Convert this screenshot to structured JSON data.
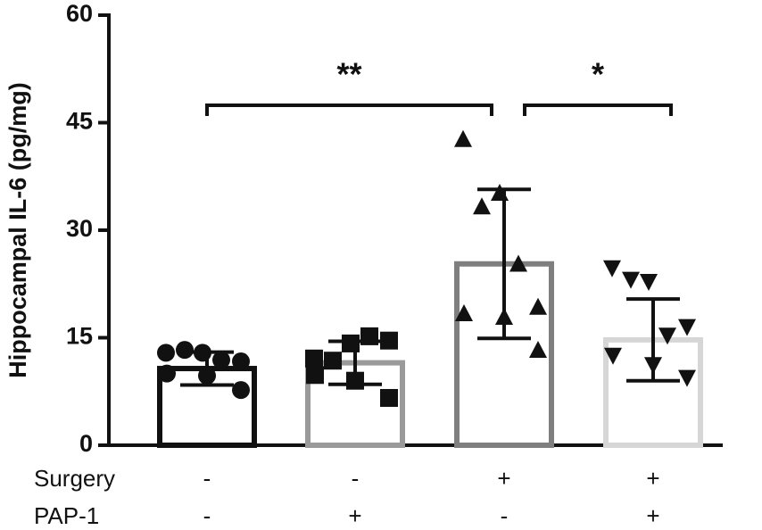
{
  "chart_data": {
    "type": "bar",
    "y_label": "Hippocampal IL-6 (pg/mg)",
    "ylim": [
      0,
      60
    ],
    "yticks": [
      0,
      15,
      30,
      45,
      60
    ],
    "values": [
      10.7,
      11.5,
      25.3,
      14.7
    ],
    "errors": [
      2.3,
      3.0,
      10.4,
      5.7
    ],
    "colors": [
      "#111111",
      "#9a9a9a",
      "#7f7f7f",
      "#d6d6d6"
    ],
    "markers": [
      "circle",
      "square",
      "triangle-up",
      "triangle-down"
    ],
    "points": [
      [
        12.9,
        13.3,
        12.9,
        11.9,
        11.7,
        10.0,
        9.7,
        7.7
      ],
      [
        12.1,
        11.8,
        14.2,
        15.2,
        14.6,
        9.8,
        9.0,
        6.6
      ],
      [
        42.6,
        33.2,
        35.1,
        25.2,
        19.2,
        18.3,
        17.8,
        13.2
      ],
      [
        24.8,
        23.2,
        22.9,
        15.4,
        16.6,
        12.6,
        11.3,
        9.5
      ]
    ],
    "factors": [
      {
        "label": "Surgery",
        "levels": [
          "-",
          "-",
          "+",
          "+"
        ]
      },
      {
        "label": "PAP-1",
        "levels": [
          "-",
          "+",
          "-",
          "+"
        ]
      }
    ],
    "annotations": [
      "**",
      "*"
    ]
  }
}
